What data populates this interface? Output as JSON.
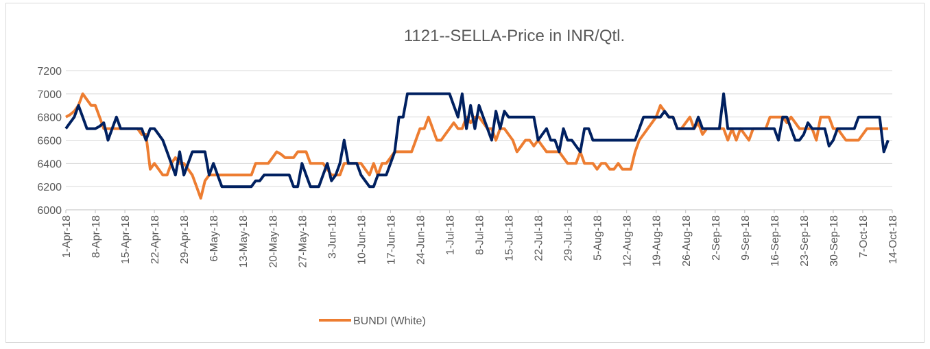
{
  "chart_data": {
    "type": "line",
    "title": "1121--SELLA-Price in INR/Qtl.",
    "categories": [
      "1-Apr-18",
      null,
      null,
      null,
      null,
      null,
      null,
      "8-Apr-18",
      null,
      null,
      null,
      null,
      null,
      null,
      "15-Apr-18",
      null,
      null,
      null,
      null,
      null,
      null,
      "22-Apr-18",
      null,
      null,
      null,
      null,
      null,
      null,
      "29-Apr-18",
      null,
      null,
      null,
      null,
      null,
      null,
      "6-May-18",
      null,
      null,
      null,
      null,
      null,
      null,
      "13-May-18",
      null,
      null,
      null,
      null,
      null,
      null,
      "20-May-18",
      null,
      null,
      null,
      null,
      null,
      null,
      "27-May-18",
      null,
      null,
      null,
      null,
      null,
      null,
      "3-Jun-18",
      null,
      null,
      null,
      null,
      null,
      null,
      "10-Jun-18",
      null,
      null,
      null,
      null,
      null,
      null,
      "17-Jun-18",
      null,
      null,
      null,
      null,
      null,
      null,
      "24-Jun-18",
      null,
      null,
      null,
      null,
      null,
      null,
      "1-Jul-18",
      null,
      null,
      null,
      null,
      null,
      null,
      "8-Jul-18",
      null,
      null,
      null,
      null,
      null,
      null,
      "15-Jul-18",
      null,
      null,
      null,
      null,
      null,
      null,
      "22-Jul-18",
      null,
      null,
      null,
      null,
      null,
      null,
      "29-Jul-18",
      null,
      null,
      null,
      null,
      null,
      null,
      "5-Aug-18",
      null,
      null,
      null,
      null,
      null,
      null,
      "12-Aug-18",
      null,
      null,
      null,
      null,
      null,
      null,
      "19-Aug-18",
      null,
      null,
      null,
      null,
      null,
      null,
      "26-Aug-18",
      null,
      null,
      null,
      null,
      null,
      null,
      "2-Sep-18",
      null,
      null,
      null,
      null,
      null,
      null,
      "9-Sep-18",
      null,
      null,
      null,
      null,
      null,
      null,
      "16-Sep-18",
      null,
      null,
      null,
      null,
      null,
      null,
      "23-Sep-18",
      null,
      null,
      null,
      null,
      null,
      null,
      "30-Sep-18",
      null,
      null,
      null,
      null,
      null,
      null,
      "7-Oct-18",
      null,
      null,
      null,
      null,
      null,
      null,
      "14-Oct-18"
    ],
    "series": [
      {
        "name": "BUNDI (White)",
        "color": "#ED7D31",
        "values": [
          6800,
          6820,
          6850,
          6900,
          7000,
          6950,
          6900,
          6900,
          6800,
          6700,
          6700,
          6700,
          6700,
          6700,
          6700,
          6700,
          6700,
          6700,
          6650,
          6650,
          6350,
          6400,
          6350,
          6300,
          6300,
          6400,
          6450,
          6400,
          6400,
          6350,
          6300,
          6200,
          6100,
          6250,
          6300,
          6300,
          6300,
          6300,
          6300,
          6300,
          6300,
          6300,
          6300,
          6300,
          6300,
          6400,
          6400,
          6400,
          6400,
          6450,
          6500,
          6480,
          6450,
          6450,
          6450,
          6500,
          6500,
          6500,
          6400,
          6400,
          6400,
          6400,
          6350,
          6300,
          6300,
          6300,
          6400,
          6400,
          6400,
          6400,
          6400,
          6350,
          6300,
          6400,
          6300,
          6400,
          6400,
          6450,
          6500,
          6500,
          6500,
          6500,
          6500,
          6600,
          6700,
          6700,
          6800,
          6700,
          6600,
          6600,
          6650,
          6700,
          6750,
          6700,
          6700,
          6800,
          6750,
          6800,
          6800,
          6750,
          6700,
          6700,
          6600,
          6700,
          6700,
          6650,
          6600,
          6500,
          6550,
          6600,
          6600,
          6550,
          6600,
          6550,
          6500,
          6500,
          6500,
          6500,
          6450,
          6400,
          6400,
          6400,
          6500,
          6400,
          6400,
          6400,
          6350,
          6400,
          6400,
          6350,
          6350,
          6400,
          6350,
          6350,
          6350,
          6500,
          6600,
          6650,
          6700,
          6750,
          6800,
          6900,
          6850,
          6800,
          6800,
          6700,
          6700,
          6750,
          6800,
          6700,
          6750,
          6650,
          6700,
          6700,
          6700,
          6700,
          6700,
          6600,
          6700,
          6600,
          6700,
          6650,
          6600,
          6700,
          6700,
          6700,
          6700,
          6800,
          6800,
          6800,
          6800,
          6750,
          6800,
          6750,
          6700,
          6700,
          6700,
          6700,
          6600,
          6800,
          6800,
          6800,
          6700,
          6700,
          6650,
          6600,
          6600,
          6600,
          6600,
          6650,
          6700,
          6700,
          6700,
          6700,
          6700,
          6700,
          null
        ]
      },
      {
        "color": "#002060",
        "values": [
          6700,
          6750,
          6800,
          6900,
          6800,
          6700,
          6700,
          6700,
          6720,
          6750,
          6600,
          6700,
          6800,
          6700,
          6700,
          6700,
          6700,
          6700,
          6700,
          6600,
          6700,
          6700,
          6650,
          6600,
          6500,
          6400,
          6300,
          6500,
          6300,
          6400,
          6500,
          6500,
          6500,
          6500,
          6300,
          6400,
          6300,
          6200,
          6200,
          6200,
          6200,
          6200,
          6200,
          6200,
          6200,
          6250,
          6250,
          6300,
          6300,
          6300,
          6300,
          6300,
          6300,
          6300,
          6200,
          6200,
          6400,
          6300,
          6200,
          6200,
          6200,
          6300,
          6400,
          6250,
          6300,
          6400,
          6600,
          6400,
          6400,
          6400,
          6300,
          6250,
          6200,
          6200,
          6300,
          6300,
          6300,
          6400,
          6500,
          6800,
          6800,
          7000,
          7000,
          7000,
          7000,
          7000,
          7000,
          7000,
          7000,
          7000,
          7000,
          7000,
          6900,
          6800,
          7000,
          6700,
          6900,
          6700,
          6900,
          6800,
          6700,
          6600,
          6850,
          6700,
          6850,
          6800,
          6800,
          6800,
          6800,
          6800,
          6800,
          6800,
          6600,
          6650,
          6700,
          6600,
          6600,
          6500,
          6700,
          6600,
          6600,
          6550,
          6500,
          6700,
          6700,
          6600,
          6600,
          6600,
          6600,
          6600,
          6600,
          6600,
          6600,
          6600,
          6600,
          6600,
          6700,
          6800,
          6800,
          6800,
          6800,
          6800,
          6850,
          6800,
          6800,
          6700,
          6700,
          6700,
          6700,
          6700,
          6800,
          6700,
          6700,
          6700,
          6700,
          6700,
          7000,
          6700,
          6700,
          6700,
          6700,
          6700,
          6700,
          6700,
          6700,
          6700,
          6700,
          6700,
          6700,
          6600,
          6800,
          6800,
          6700,
          6600,
          6600,
          6650,
          6750,
          6700,
          6700,
          6700,
          6700,
          6550,
          6600,
          6700,
          6700,
          6700,
          6700,
          6700,
          6800,
          6800,
          6800,
          6800,
          6800,
          6800,
          6500,
          6600,
          null
        ]
      }
    ],
    "ylim": [
      6000,
      7200
    ],
    "yticks": [
      6000,
      6200,
      6400,
      6600,
      6800,
      7000,
      7200
    ],
    "grid": true
  }
}
